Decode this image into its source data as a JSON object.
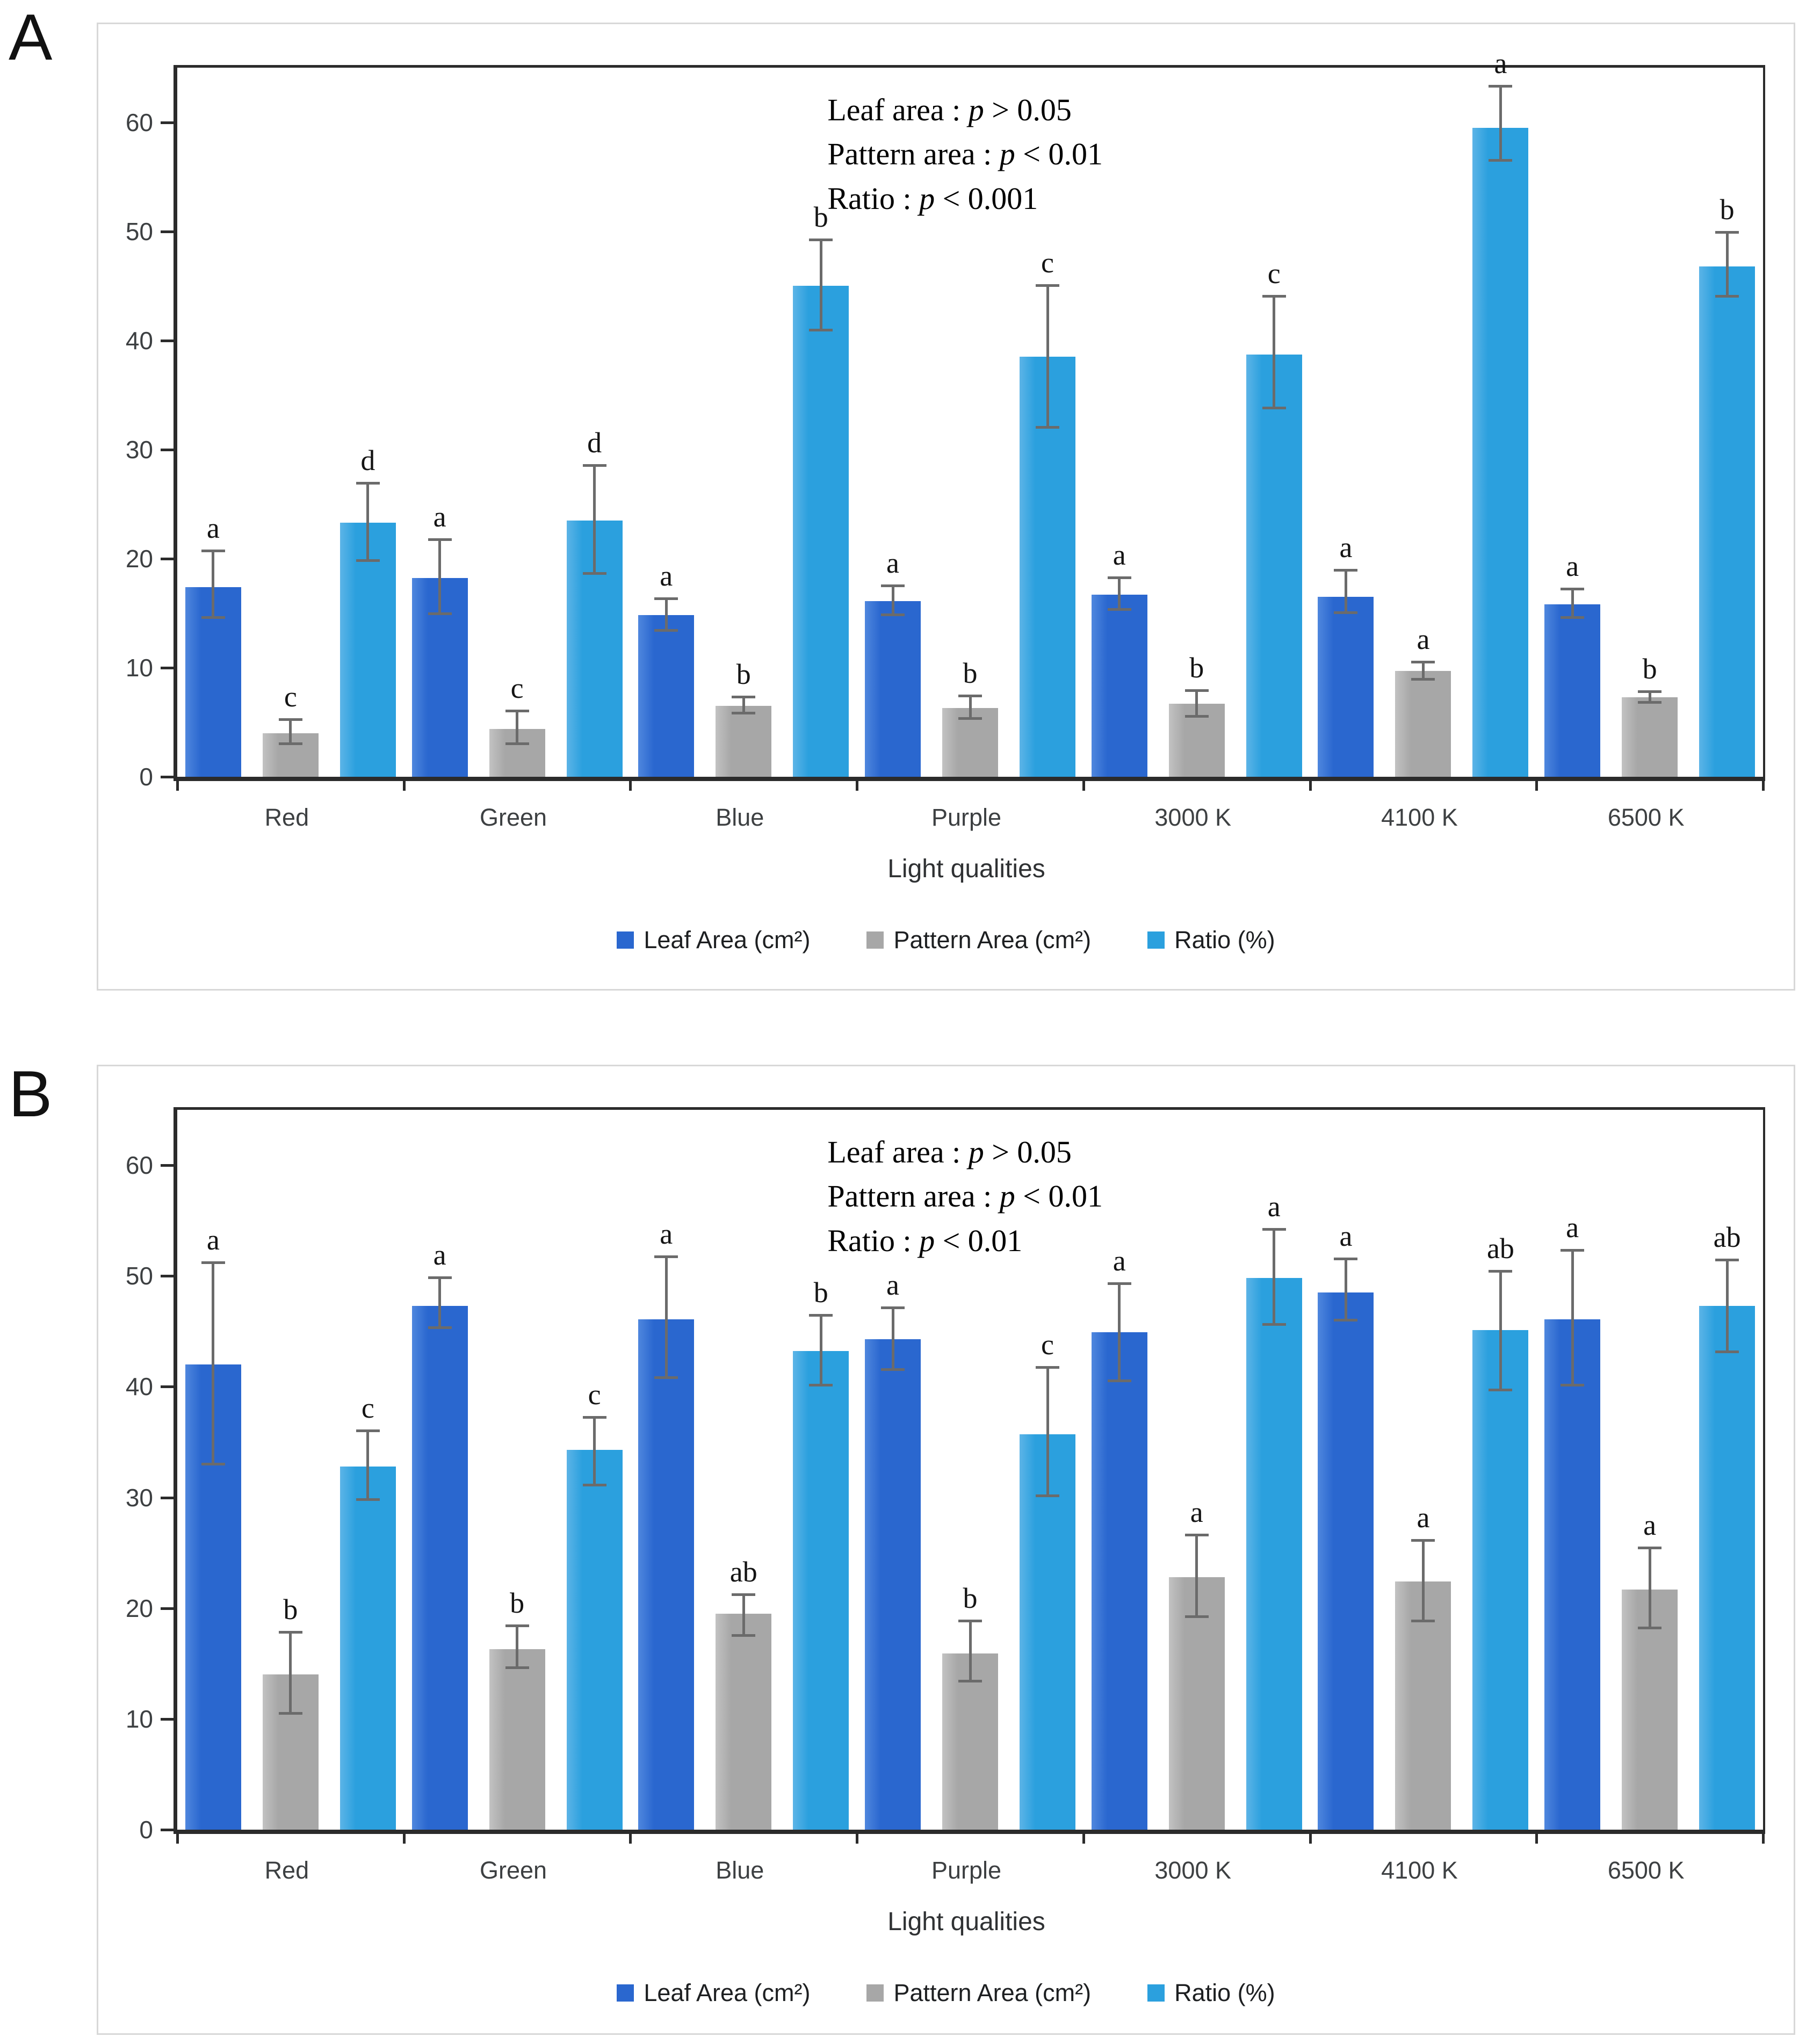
{
  "figure": {
    "panels": [
      {
        "label": "A"
      },
      {
        "label": "B"
      }
    ]
  },
  "chart_data": [
    {
      "panel": "A",
      "type": "bar",
      "categories": [
        "Red",
        "Green",
        "Blue",
        "Purple",
        "3000 K",
        "4100 K",
        "6500 K"
      ],
      "xlabel": "Light qualities",
      "ylim": [
        0,
        65
      ],
      "yticks": [
        0,
        10,
        20,
        30,
        40,
        50,
        60
      ],
      "grid": false,
      "legend_position": "bottom",
      "annotation_lines": [
        {
          "prefix": "Leaf area : ",
          "p": "p",
          "suffix": " > 0.05"
        },
        {
          "prefix": "Pattern area : ",
          "p": "p",
          "suffix": " < 0.01"
        },
        {
          "prefix": "Ratio : ",
          "p": "p",
          "suffix": " < 0.001"
        }
      ],
      "series": [
        {
          "name": "Leaf Area (cm²)",
          "key": "leaf-area",
          "color": "#2a67cf",
          "values": [
            17.4,
            18.2,
            14.8,
            16.1,
            16.7,
            16.5,
            15.8
          ],
          "err_low": [
            14.6,
            14.9,
            13.4,
            14.8,
            15.3,
            15.0,
            14.6
          ],
          "err_high": [
            20.7,
            21.7,
            16.3,
            17.5,
            18.2,
            18.9,
            17.2
          ],
          "letters": [
            "a",
            "a",
            "a",
            "a",
            "a",
            "a",
            "a"
          ]
        },
        {
          "name": "Pattern Area (cm²)",
          "key": "pattern-area",
          "color": "#a7a7a7",
          "values": [
            4.0,
            4.4,
            6.5,
            6.3,
            6.7,
            9.7,
            7.3
          ],
          "err_low": [
            3.0,
            3.0,
            5.8,
            5.3,
            5.5,
            8.9,
            6.8
          ],
          "err_high": [
            5.2,
            6.0,
            7.3,
            7.4,
            7.9,
            10.5,
            7.8
          ],
          "letters": [
            "c",
            "c",
            "b",
            "b",
            "b",
            "a",
            "b"
          ]
        },
        {
          "name": "Ratio (%)",
          "key": "ratio",
          "color": "#2ba0de",
          "values": [
            23.3,
            23.5,
            45.0,
            38.5,
            38.7,
            59.5,
            46.8
          ],
          "err_low": [
            19.8,
            18.6,
            40.9,
            32.0,
            33.8,
            56.5,
            44.0
          ],
          "err_high": [
            26.9,
            28.5,
            49.2,
            45.0,
            44.0,
            63.3,
            49.9
          ],
          "letters": [
            "d",
            "d",
            "b",
            "c",
            "c",
            "a",
            "b"
          ]
        }
      ]
    },
    {
      "panel": "B",
      "type": "bar",
      "categories": [
        "Red",
        "Green",
        "Blue",
        "Purple",
        "3000 K",
        "4100 K",
        "6500 K"
      ],
      "xlabel": "Light qualities",
      "ylim": [
        0,
        65
      ],
      "yticks": [
        0,
        10,
        20,
        30,
        40,
        50,
        60
      ],
      "grid": false,
      "legend_position": "bottom",
      "annotation_lines": [
        {
          "prefix": "Leaf area : ",
          "p": "p",
          "suffix": " > 0.05"
        },
        {
          "prefix": "Pattern area : ",
          "p": "p",
          "suffix": " < 0.01"
        },
        {
          "prefix": "Ratio : ",
          "p": "p",
          "suffix": " < 0.01"
        }
      ],
      "series": [
        {
          "name": "Leaf Area (cm²)",
          "key": "leaf-area",
          "color": "#2a67cf",
          "values": [
            42.0,
            47.3,
            46.1,
            44.3,
            44.9,
            48.5,
            46.1
          ],
          "err_low": [
            33.0,
            45.3,
            40.8,
            41.5,
            40.5,
            46.0,
            40.1
          ],
          "err_high": [
            51.2,
            49.8,
            51.7,
            47.1,
            49.3,
            51.5,
            52.3
          ],
          "letters": [
            "a",
            "a",
            "a",
            "a",
            "a",
            "a",
            "a"
          ]
        },
        {
          "name": "Pattern Area (cm²)",
          "key": "pattern-area",
          "color": "#a7a7a7",
          "values": [
            14.0,
            16.3,
            19.5,
            15.9,
            22.8,
            22.4,
            21.7
          ],
          "err_low": [
            10.5,
            14.6,
            17.5,
            13.4,
            19.2,
            18.8,
            18.2
          ],
          "err_high": [
            17.8,
            18.4,
            21.2,
            18.8,
            26.6,
            26.1,
            25.4
          ],
          "letters": [
            "b",
            "b",
            "ab",
            "b",
            "a",
            "a",
            "a"
          ]
        },
        {
          "name": "Ratio (%)",
          "key": "ratio",
          "color": "#2ba0de",
          "values": [
            32.8,
            34.3,
            43.2,
            35.7,
            49.8,
            45.1,
            47.3
          ],
          "err_low": [
            29.8,
            31.1,
            40.1,
            30.1,
            45.6,
            39.7,
            43.1
          ],
          "err_high": [
            36.0,
            37.2,
            46.4,
            41.7,
            54.2,
            50.4,
            51.4
          ],
          "letters": [
            "c",
            "c",
            "b",
            "c",
            "a",
            "ab",
            "ab"
          ]
        }
      ]
    }
  ]
}
